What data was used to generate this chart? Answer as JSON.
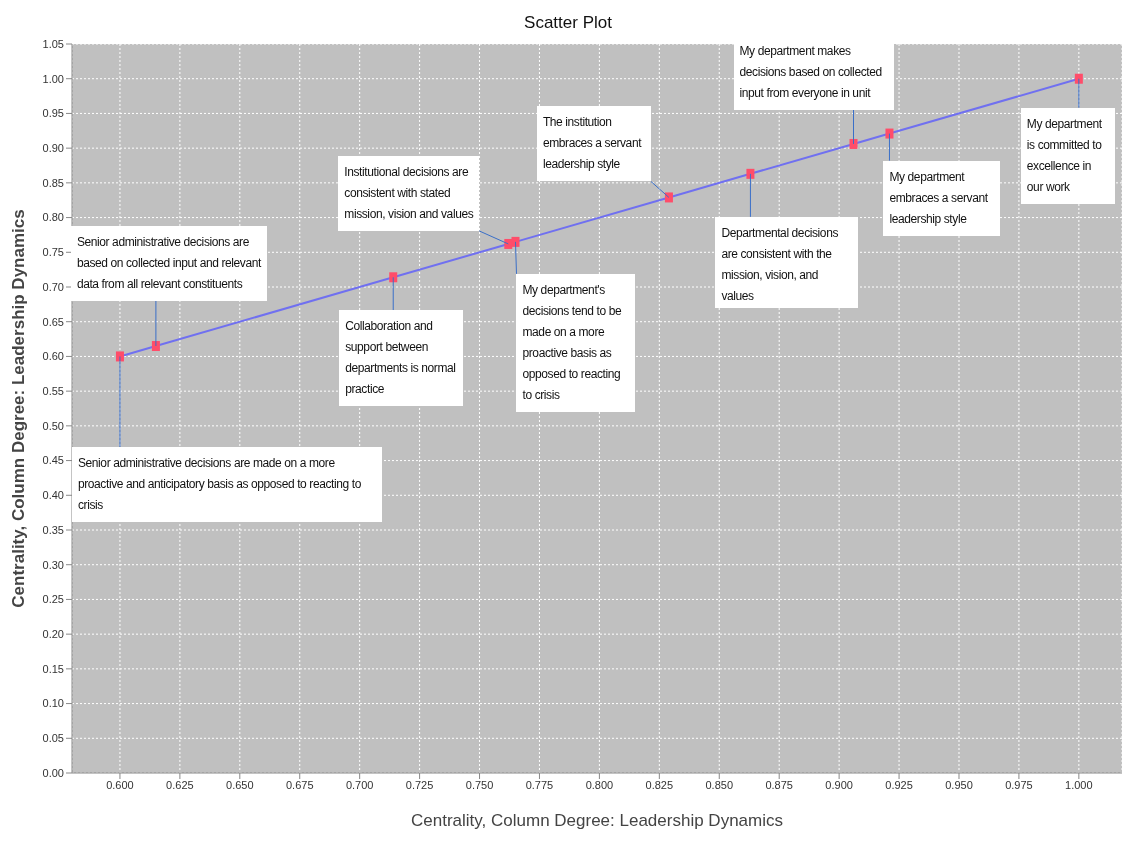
{
  "chart_data": {
    "type": "line",
    "title": "Scatter Plot",
    "xlabel": "Centrality, Column Degree: Leadership Dynamics",
    "ylabel": "Centrality, Column Degree: Leadership Dynamics",
    "x": [
      0.6,
      0.615,
      0.714,
      0.762,
      0.765,
      0.829,
      0.863,
      0.906,
      0.921,
      1.0
    ],
    "series": [
      {
        "color": "#ff4d6a",
        "values": [
          0.6,
          0.615,
          0.714,
          0.762,
          0.765,
          0.829,
          0.863,
          0.906,
          0.921,
          1.0
        ]
      }
    ],
    "marker": "square",
    "line_style": "solid",
    "grid": true,
    "legend": false,
    "xlim": [
      0.58,
      1.018
    ],
    "ylim": [
      0,
      1.05
    ],
    "xticks": [
      {
        "value": 0.6,
        "label": "0.600"
      },
      {
        "value": 0.625,
        "label": "0.625"
      },
      {
        "value": 0.65,
        "label": "0.650"
      },
      {
        "value": 0.675,
        "label": "0.675"
      },
      {
        "value": 0.7,
        "label": "0.700"
      },
      {
        "value": 0.725,
        "label": "0.725"
      },
      {
        "value": 0.75,
        "label": "0.750"
      },
      {
        "value": 0.775,
        "label": "0.775"
      },
      {
        "value": 0.8,
        "label": "0.800"
      },
      {
        "value": 0.825,
        "label": "0.825"
      },
      {
        "value": 0.85,
        "label": "0.850"
      },
      {
        "value": 0.875,
        "label": "0.875"
      },
      {
        "value": 0.9,
        "label": "0.900"
      },
      {
        "value": 0.925,
        "label": "0.925"
      },
      {
        "value": 0.95,
        "label": "0.950"
      },
      {
        "value": 0.975,
        "label": "0.975"
      },
      {
        "value": 1.0,
        "label": "1.000"
      }
    ],
    "yticks": [
      {
        "value": 0,
        "label": "0.00"
      },
      {
        "value": 0.05,
        "label": "0.05"
      },
      {
        "value": 0.1,
        "label": "0.10"
      },
      {
        "value": 0.15,
        "label": "0.15"
      },
      {
        "value": 0.2,
        "label": "0.20"
      },
      {
        "value": 0.25,
        "label": "0.25"
      },
      {
        "value": 0.3,
        "label": "0.30"
      },
      {
        "value": 0.35,
        "label": "0.35"
      },
      {
        "value": 0.4,
        "label": "0.40"
      },
      {
        "value": 0.45,
        "label": "0.45"
      },
      {
        "value": 0.5,
        "label": "0.50"
      },
      {
        "value": 0.55,
        "label": "0.55"
      },
      {
        "value": 0.6,
        "label": "0.60"
      },
      {
        "value": 0.65,
        "label": "0.65"
      },
      {
        "value": 0.7,
        "label": "0.70"
      },
      {
        "value": 0.75,
        "label": "0.75"
      },
      {
        "value": 0.8,
        "label": "0.80"
      },
      {
        "value": 0.85,
        "label": "0.85"
      },
      {
        "value": 0.9,
        "label": "0.90"
      },
      {
        "value": 0.95,
        "label": "0.95"
      },
      {
        "value": 1.0,
        "label": "1.00"
      },
      {
        "value": 1.05,
        "label": "1.05"
      }
    ],
    "annotations": [
      {
        "text": "Senior administrative decisions are made on a more proactive and anticipatory basis as opposed to reacting to crisis",
        "x": 0.6,
        "y": 0.6
      },
      {
        "text": "Senior administrative decisions are based on collected input and relevant data from all relevant constituents",
        "x": 0.615,
        "y": 0.615
      },
      {
        "text": "Collaboration and support between departments is normal practice",
        "x": 0.714,
        "y": 0.714
      },
      {
        "text": "Institutional decisions are consistent with stated mission, vision and values",
        "x": 0.762,
        "y": 0.762
      },
      {
        "text": "My department's decisions tend to be made on a more proactive basis as opposed to reacting to crisis",
        "x": 0.765,
        "y": 0.765
      },
      {
        "text": "The institution embraces a servant leadership style",
        "x": 0.829,
        "y": 0.829
      },
      {
        "text": "Departmental decisions are consistent with the mission, vision, and values",
        "x": 0.863,
        "y": 0.863
      },
      {
        "text": "My department makes decisions based on collected input from everyone in unit",
        "x": 0.906,
        "y": 0.906
      },
      {
        "text": "My department embraces a servant leadership style",
        "x": 0.921,
        "y": 0.921
      },
      {
        "text": "My department is committed to excellence in our work",
        "x": 1.0,
        "y": 1.0
      }
    ]
  }
}
